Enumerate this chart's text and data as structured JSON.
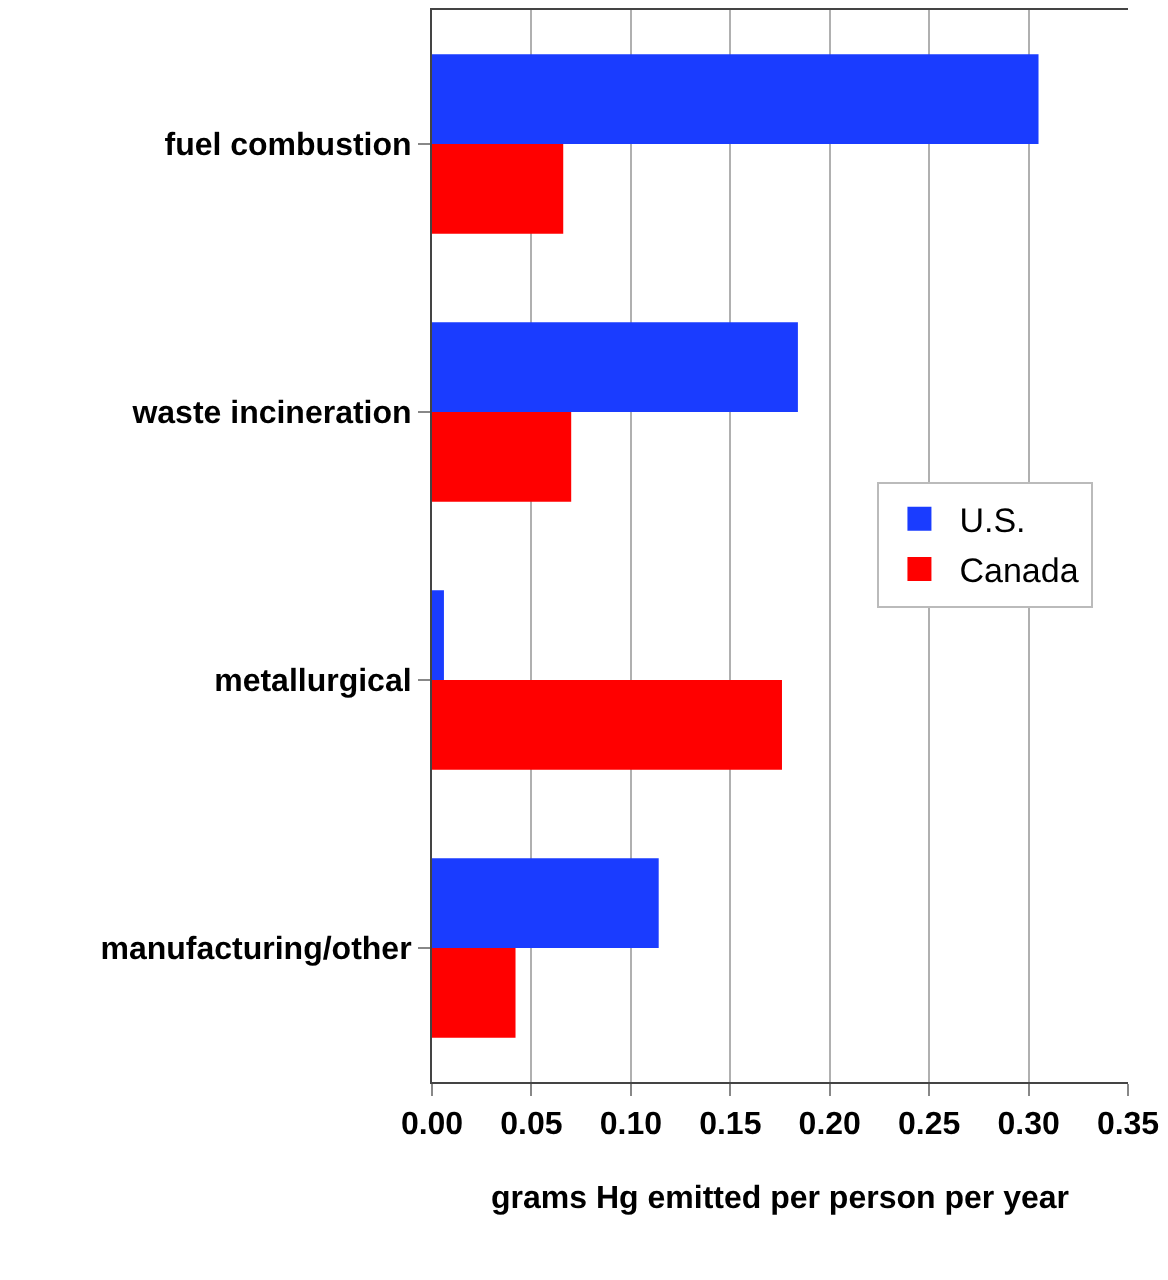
{
  "chart_data": {
    "type": "bar",
    "orientation": "horizontal",
    "xlabel": "grams Hg emitted per person per year",
    "categories": [
      "fuel combustion",
      "waste incineration",
      "metallurgical",
      "manufacturing/other"
    ],
    "series": [
      {
        "name": "U.S.",
        "color": "#1a3cff",
        "values": [
          0.305,
          0.184,
          0.006,
          0.114
        ]
      },
      {
        "name": "Canada",
        "color": "#ff0000",
        "values": [
          0.066,
          0.07,
          0.176,
          0.042
        ]
      }
    ],
    "xlim": [
      0,
      0.35
    ],
    "xticks": [
      {
        "value": 0,
        "label": "0.00"
      },
      {
        "value": 0.05,
        "label": "0.05"
      },
      {
        "value": 0.1,
        "label": "0.10"
      },
      {
        "value": 0.15,
        "label": "0.15"
      },
      {
        "value": 0.2,
        "label": "0.20"
      },
      {
        "value": 0.25,
        "label": "0.25"
      },
      {
        "value": 0.3,
        "label": "0.30"
      },
      {
        "value": 0.35,
        "label": "0.35"
      }
    ],
    "grid": "x",
    "legend": "right"
  }
}
